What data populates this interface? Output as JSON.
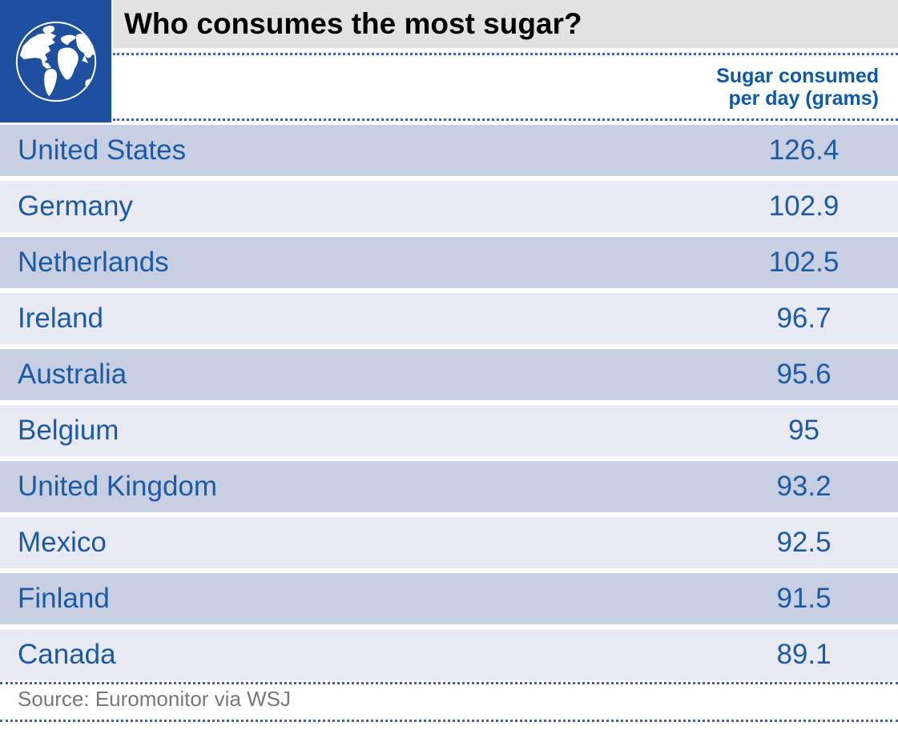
{
  "header": {
    "title": "Who consumes the most sugar?",
    "column_header_lines": [
      "Sugar consumed",
      "per day (grams)"
    ]
  },
  "source": "Source: Euromonitor via WSJ",
  "icons": {
    "globe": "globe-icon"
  },
  "colors": {
    "brand_blue": "#1e509f",
    "title_band_bg": "#e2e2e3",
    "title_text": "#000000",
    "dot_blue": "#4060ae",
    "header_blue": "#0f5aa8",
    "row_text_blue": "#1b5ba6",
    "row_dark_bg": "#c9cfe2",
    "row_light_bg": "#e8e9f3",
    "source_gray": "#77787b",
    "globe_white": "#ffffff"
  },
  "chart_data": {
    "type": "table",
    "title": "Who consumes the most sugar?",
    "columns": [
      "Country",
      "Sugar consumed per day (grams)"
    ],
    "categories": [
      "United States",
      "Germany",
      "Netherlands",
      "Ireland",
      "Australia",
      "Belgium",
      "United Kingdom",
      "Mexico",
      "Finland",
      "Canada"
    ],
    "values": [
      126.4,
      102.9,
      102.5,
      96.7,
      95.6,
      95,
      93.2,
      92.5,
      91.5,
      89.1
    ],
    "layout": {
      "row_striping": "alternating starting dark",
      "value_alignment": "center",
      "legend": "none",
      "grid": "off"
    },
    "source": "Source: Euromonitor via WSJ"
  }
}
